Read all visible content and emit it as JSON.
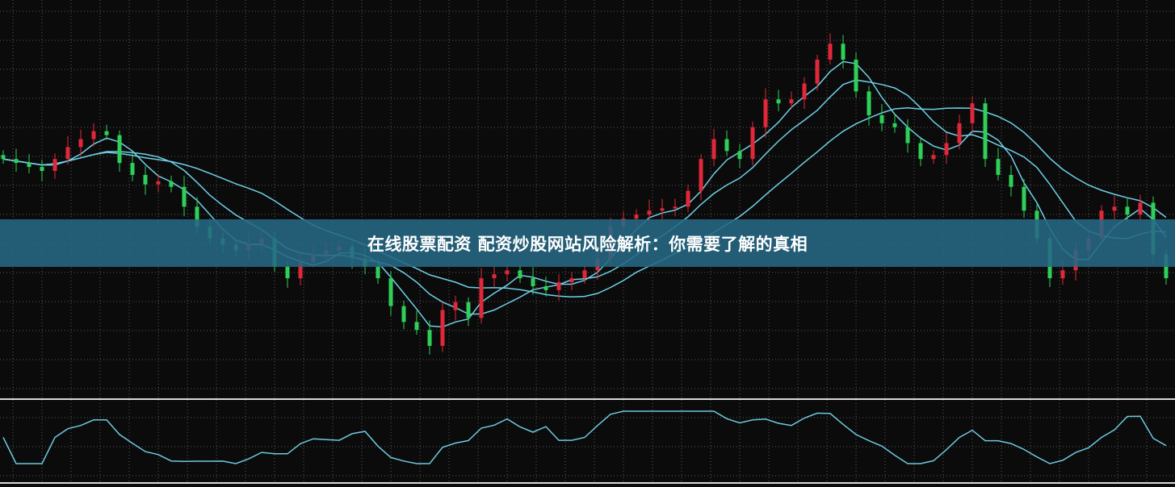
{
  "banner": {
    "title": "在线股票配资 配资炒股网站风险解析：你需要了解的真相"
  },
  "chart_data": {
    "type": "candlestick",
    "title": "在线股票配资 配资炒股网站风险解析：你需要了解的真相",
    "xlabel": "",
    "ylabel": "",
    "ylim": [
      0,
      500
    ],
    "grid": true,
    "legend": "none",
    "closes": [
      300,
      295,
      290,
      285,
      300,
      315,
      325,
      335,
      330,
      295,
      280,
      268,
      272,
      265,
      240,
      215,
      200,
      192,
      185,
      193,
      200,
      165,
      150,
      170,
      180,
      185,
      190,
      175,
      165,
      150,
      115,
      95,
      85,
      65,
      110,
      120,
      100,
      150,
      155,
      160,
      150,
      140,
      135,
      145,
      150,
      160,
      175,
      215,
      225,
      230,
      235,
      238,
      240,
      260,
      300,
      325,
      310,
      300,
      340,
      375,
      370,
      375,
      395,
      425,
      445,
      425,
      385,
      355,
      345,
      340,
      320,
      300,
      305,
      320,
      345,
      370,
      300,
      280,
      265,
      235,
      200,
      150,
      160,
      185,
      200,
      235,
      240,
      230,
      245,
      180,
      150
    ],
    "moving_average_periods": [
      4,
      8,
      16
    ],
    "lower_panel": "oscillator",
    "colors": {
      "background": "#0b0b0b",
      "up": "#e0283a",
      "down": "#2fd05a",
      "ma": "#6fd0e8",
      "oscillator": "#6fc8e0",
      "grid": "#5a5a5a",
      "banner": "#26688a"
    }
  }
}
